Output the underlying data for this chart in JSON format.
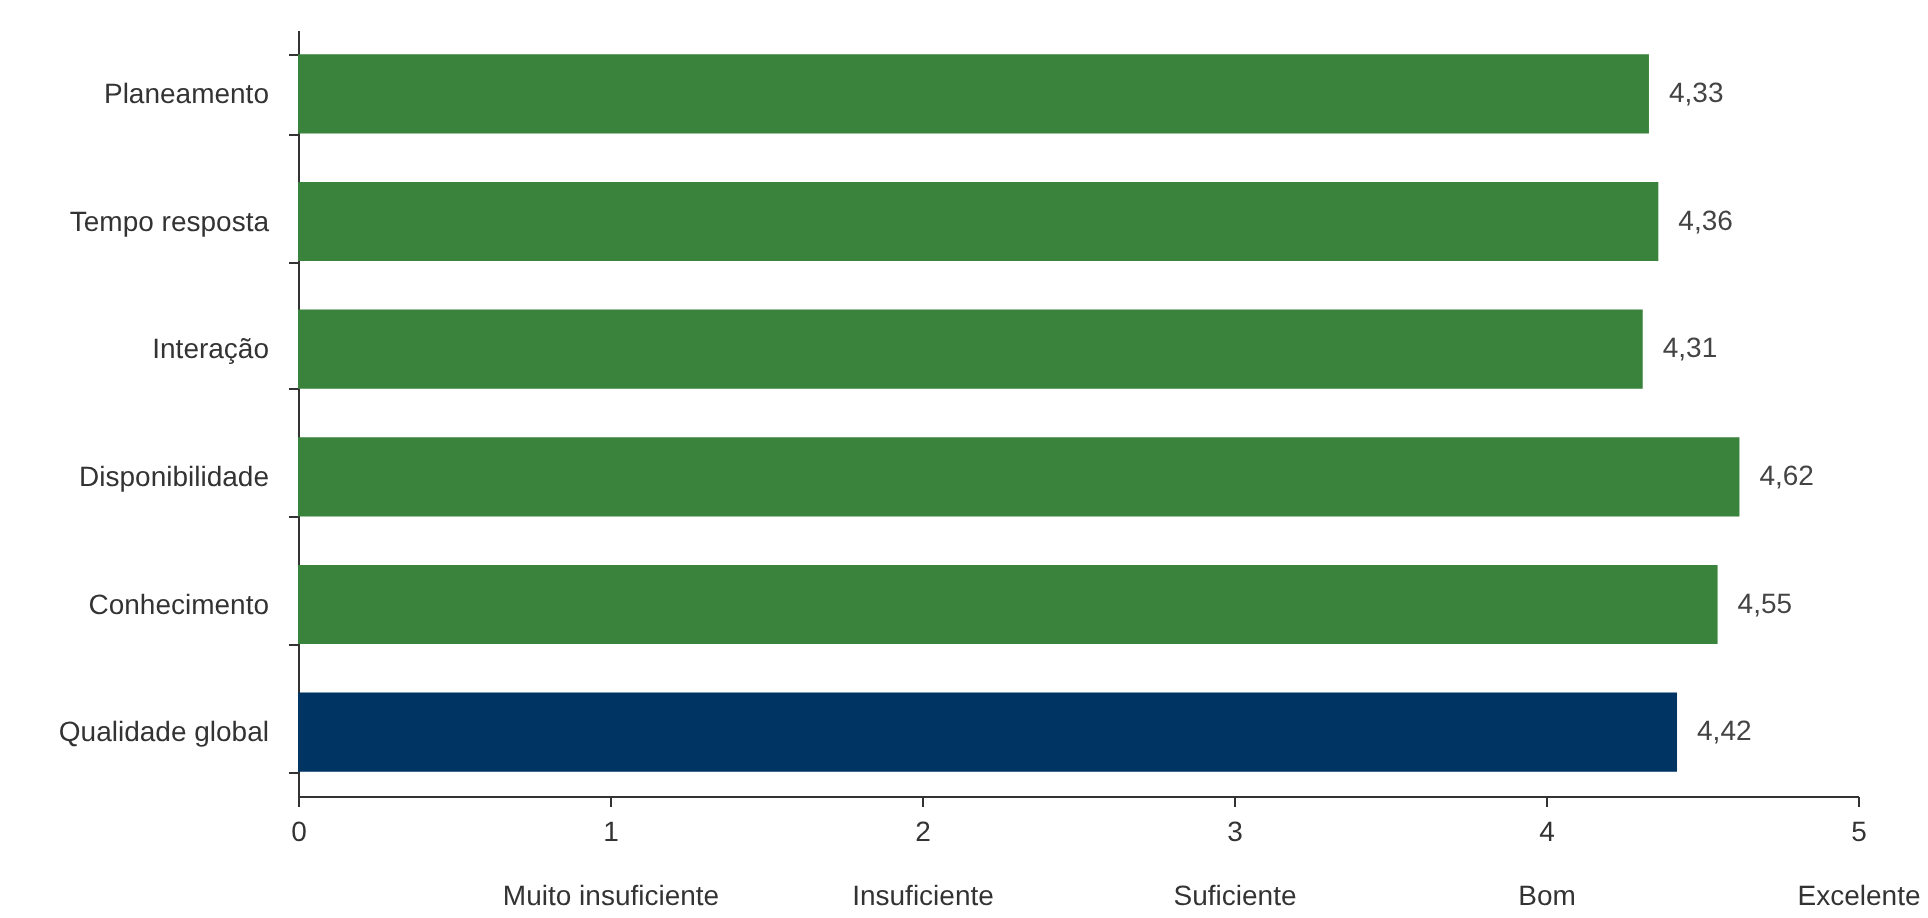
{
  "chart_data": {
    "type": "bar",
    "orientation": "horizontal",
    "categories": [
      "Planeamento",
      "Tempo resposta",
      "Interação",
      "Disponibilidade",
      "Conhecimento",
      "Qualidade global"
    ],
    "values": [
      4.33,
      4.36,
      4.31,
      4.62,
      4.55,
      4.42
    ],
    "colors": [
      "#3a833c",
      "#3a833c",
      "#3a833c",
      "#3a833c",
      "#3a833c",
      "#003462"
    ],
    "value_labels": [
      "4,33",
      "4,36",
      "4,31",
      "4,62",
      "4,55",
      "4,42"
    ],
    "xlim": [
      0,
      5
    ],
    "xticks": [
      0,
      {
        "value": 1,
        "label": "1\nMuito insuficiente"
      },
      {
        "value": 2,
        "label": "2\nInsuficiente"
      },
      {
        "value": 3,
        "label": "3\nSuficiente"
      },
      {
        "value": 4,
        "label": "4\nBom"
      },
      {
        "value": 5,
        "label": "5\nExcelente"
      }
    ],
    "grid": false
  }
}
